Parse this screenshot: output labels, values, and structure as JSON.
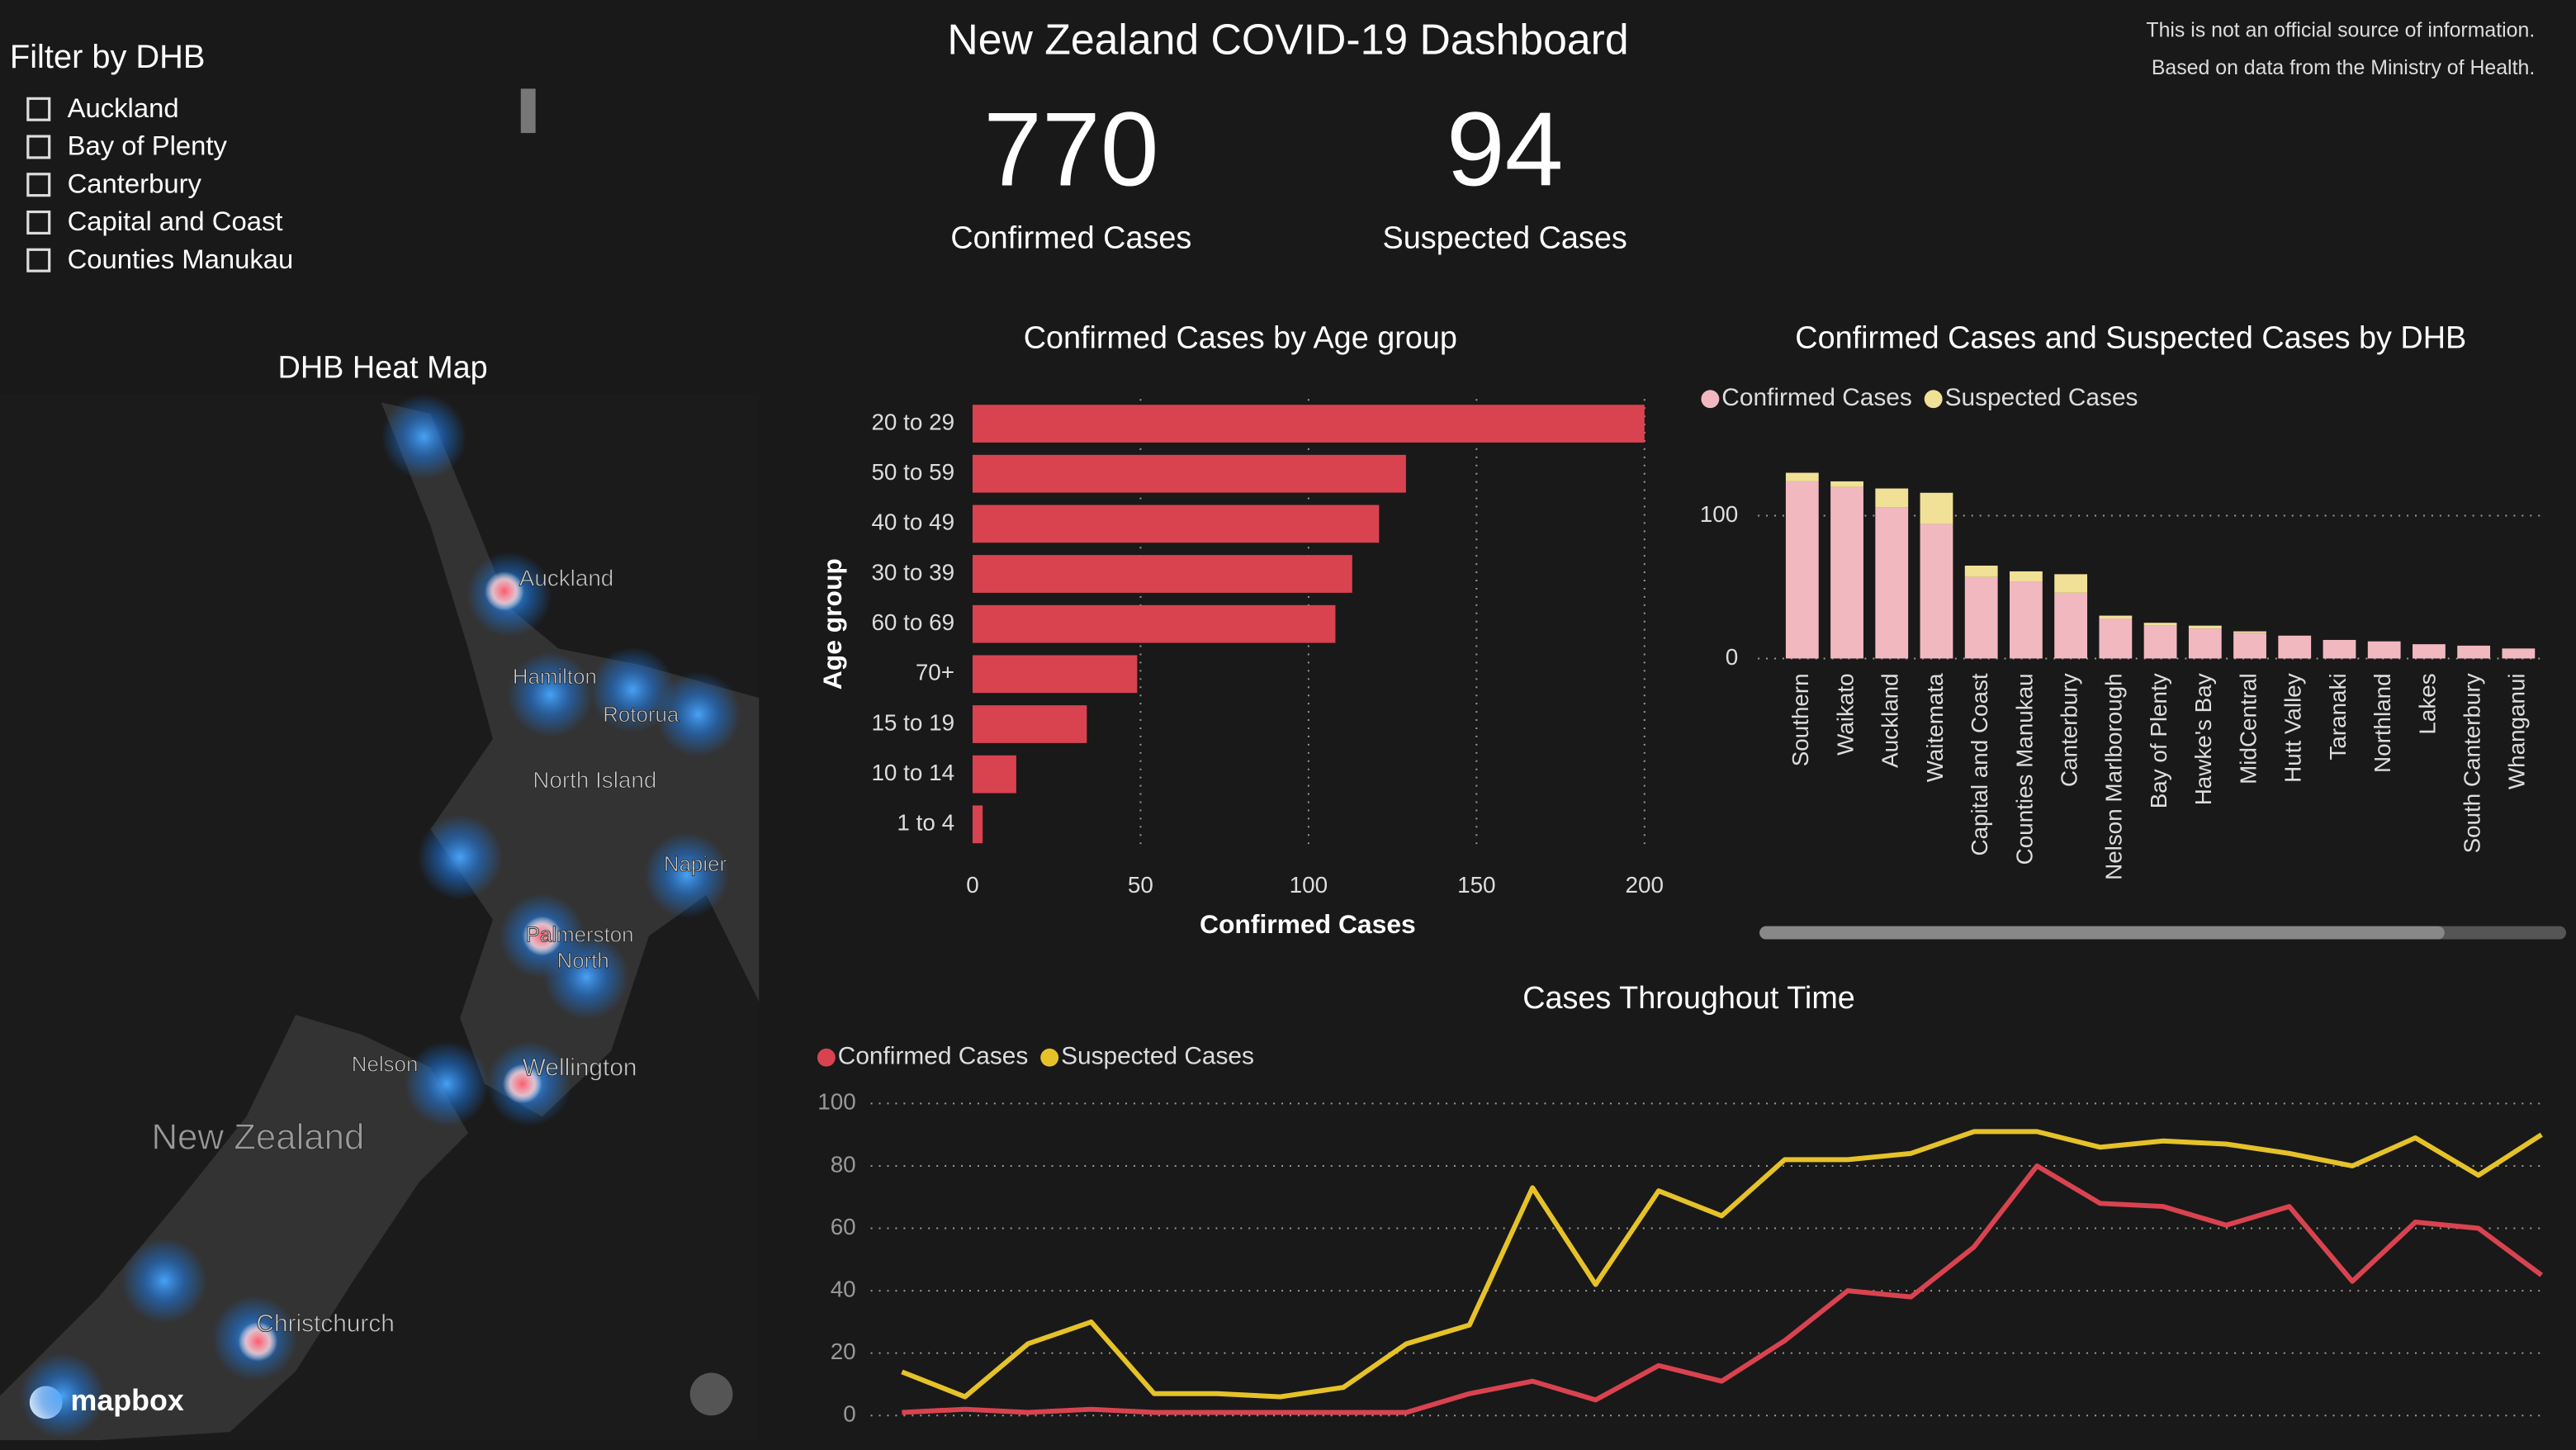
{
  "header": {
    "title": "New Zealand COVID-19 Dashboard",
    "disclaimer": [
      "This is not an official source of information.",
      "Based on data from the Ministry of Health."
    ]
  },
  "filter": {
    "title": "Filter by DHB",
    "options": [
      "Auckland",
      "Bay of Plenty",
      "Canterbury",
      "Capital and Coast",
      "Counties Manukau"
    ]
  },
  "kpis": [
    {
      "value": 770,
      "label": "Confirmed Cases"
    },
    {
      "value": 94,
      "label": "Suspected Cases"
    }
  ],
  "map": {
    "title": "DHB Heat Map",
    "labels": [
      "Auckland",
      "Hamilton",
      "Rotorua",
      "North Island",
      "Napier",
      "Palmerston",
      "North",
      "Nelson",
      "Wellington",
      "New Zealand",
      "Christchurch"
    ],
    "attribution": "mapbox"
  },
  "chart_data": [
    {
      "type": "bar",
      "orientation": "horizontal",
      "title": "Confirmed Cases by Age group",
      "xlabel": "Confirmed Cases",
      "ylabel": "Age group",
      "categories": [
        "20 to 29",
        "50 to 59",
        "40 to 49",
        "30 to 39",
        "60 to 69",
        "70+",
        "15 to 19",
        "10 to 14",
        "1 to 4"
      ],
      "values": [
        200,
        129,
        121,
        113,
        108,
        49,
        34,
        13,
        3
      ],
      "color": "#d9434f",
      "xlim": [
        0,
        200
      ],
      "xticks": [
        0,
        50,
        100,
        150,
        200
      ],
      "grid": true
    },
    {
      "type": "stacked_bar",
      "title": "Confirmed Cases and Suspected Cases by DHB",
      "categories": [
        "Southern",
        "Waikato",
        "Auckland",
        "Waitemata",
        "Capital and Coast",
        "Counties Manukau",
        "Canterbury",
        "Nelson Marlborough",
        "Bay of Plenty",
        "Hawke's Bay",
        "MidCentral",
        "Hutt Valley",
        "Taranaki",
        "Northland",
        "Lakes",
        "South Canterbury",
        "Whanganui"
      ],
      "series": [
        {
          "name": "Confirmed Cases",
          "color": "#f2b8c0",
          "values": [
            124,
            120,
            106,
            94,
            57,
            54,
            46,
            28,
            23,
            21,
            18,
            16,
            13,
            12,
            10,
            9,
            7
          ]
        },
        {
          "name": "Suspected Cases",
          "color": "#f0e196",
          "values": [
            6,
            4,
            13,
            22,
            8,
            7,
            13,
            2,
            2,
            2,
            1,
            0,
            0,
            0,
            0,
            0,
            0
          ]
        }
      ],
      "ylim": [
        0,
        135
      ],
      "yticks": [
        0,
        100
      ],
      "grid": true,
      "legend": "top-left"
    },
    {
      "type": "line",
      "title": "Cases Throughout Time",
      "categories": [
        null,
        null,
        null,
        null,
        null,
        null,
        null,
        null,
        null,
        null,
        null,
        null,
        null,
        null,
        null,
        null,
        null,
        null,
        null,
        null,
        null,
        null,
        null,
        null,
        null,
        null,
        null
      ],
      "series": [
        {
          "name": "Confirmed Cases",
          "color": "#d9434f",
          "values": [
            1,
            2,
            1,
            2,
            1,
            1,
            1,
            1,
            1,
            7,
            11,
            5,
            16,
            11,
            24,
            40,
            38,
            54,
            80,
            68,
            67,
            61,
            67,
            43,
            62,
            60,
            45
          ]
        },
        {
          "name": "Suspected Cases",
          "color": "#e6c229",
          "values": [
            14,
            6,
            23,
            30,
            7,
            7,
            6,
            9,
            23,
            29,
            73,
            42,
            72,
            64,
            82,
            82,
            84,
            91,
            91,
            86,
            88,
            87,
            84,
            80,
            89,
            77,
            90
          ]
        }
      ],
      "ylim": [
        0,
        100
      ],
      "yticks": [
        0,
        20,
        40,
        60,
        80,
        100
      ],
      "grid": true,
      "legend": "top-left"
    }
  ]
}
